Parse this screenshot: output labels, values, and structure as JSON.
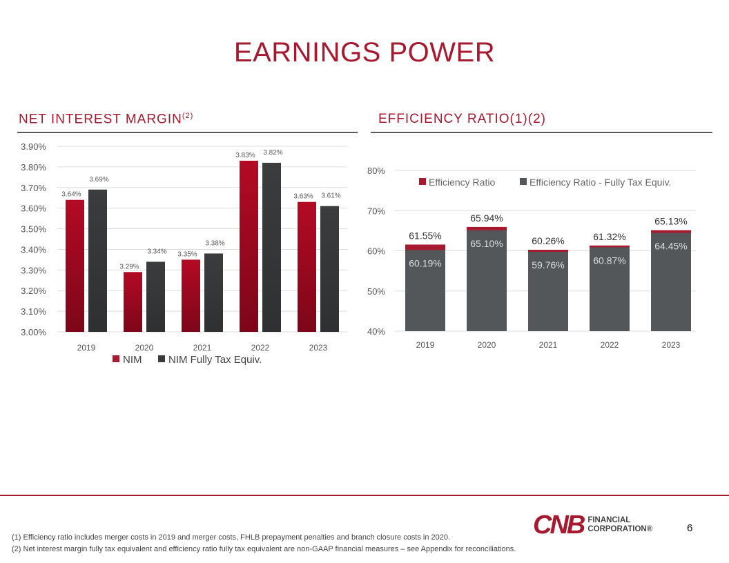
{
  "title": "EARNINGS POWER",
  "left_heading": "NET INTEREST MARGIN",
  "left_heading_sup": "(2)",
  "right_heading": "EFFICIENCY RATIO(1)(2)",
  "footnotes": [
    "(1) Efficiency ratio includes merger costs in 2019 and merger costs, FHLB prepayment penalties and branch closure costs in 2020.",
    "(2) Net interest margin fully tax equivalent and efficiency ratio fully tax equivalent are non-GAAP financial measures – see Appendix for reconciliations."
  ],
  "page_number": "6",
  "logo": {
    "mark": "CNB",
    "line1": "FINANCIAL",
    "line2": "CORPORATION®"
  },
  "colors": {
    "red": "#a6192e",
    "dark": "#3a3b3d",
    "gray": "#54575a"
  },
  "chart_data": [
    {
      "type": "bar",
      "title": "NET INTEREST MARGIN(2)",
      "categories": [
        "2019",
        "2020",
        "2021",
        "2022",
        "2023"
      ],
      "series": [
        {
          "name": "NIM",
          "values": [
            3.64,
            3.29,
            3.35,
            3.83,
            3.63
          ],
          "labels": [
            "3.64%",
            "3.29%",
            "3.35%",
            "3.83%",
            "3.63%"
          ]
        },
        {
          "name": "NIM Fully Tax Equiv.",
          "values": [
            3.69,
            3.34,
            3.38,
            3.82,
            3.61
          ],
          "labels": [
            "3.69%",
            "3.34%",
            "3.38%",
            "3.82%",
            "3.61%"
          ]
        }
      ],
      "ylim": [
        3.0,
        3.9
      ],
      "yticks": [
        "3.00%",
        "3.10%",
        "3.20%",
        "3.30%",
        "3.40%",
        "3.50%",
        "3.60%",
        "3.70%",
        "3.80%",
        "3.90%"
      ],
      "grid": true,
      "legend": "bottom"
    },
    {
      "type": "bar",
      "title": "EFFICIENCY RATIO(1)(2)",
      "categories": [
        "2019",
        "2020",
        "2021",
        "2022",
        "2023"
      ],
      "series": [
        {
          "name": "Efficiency Ratio",
          "values": [
            61.55,
            65.94,
            60.26,
            61.32,
            65.13
          ],
          "labels": [
            "61.55%",
            "65.94%",
            "60.26%",
            "61.32%",
            "65.13%"
          ]
        },
        {
          "name": "Efficiency Ratio - Fully Tax Equiv.",
          "values": [
            60.19,
            65.1,
            59.76,
            60.87,
            64.45
          ],
          "labels": [
            "60.19%",
            "65.10%",
            "59.76%",
            "60.87%",
            "64.45%"
          ]
        }
      ],
      "ylim": [
        40,
        80
      ],
      "yticks": [
        "40%",
        "50%",
        "60%",
        "70%",
        "80%"
      ],
      "grid": true,
      "legend": "top"
    }
  ]
}
